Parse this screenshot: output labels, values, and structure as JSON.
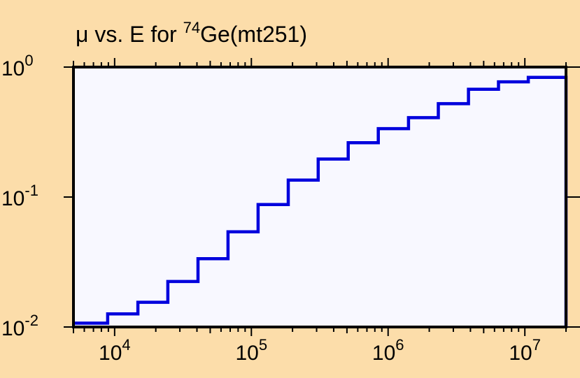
{
  "colors": {
    "background": "#FCDDAA",
    "plot_area": "#F8F8FF",
    "series": "#0000DD",
    "axis": "#000000"
  },
  "chart_data": {
    "type": "line",
    "step": true,
    "title": {
      "prefix": "μ vs. E for ",
      "sup": "74",
      "suffix": "Ge(mt251)"
    },
    "xlabel": "",
    "ylabel": "",
    "xscale": "log",
    "yscale": "log",
    "xlim": [
      5000,
      20000000
    ],
    "ylim": [
      0.01,
      1
    ],
    "grid": false,
    "x_ticks": [
      {
        "base": "10",
        "exp": "4",
        "value": 10000
      },
      {
        "base": "10",
        "exp": "5",
        "value": 100000
      },
      {
        "base": "10",
        "exp": "6",
        "value": 1000000
      },
      {
        "base": "10",
        "exp": "7",
        "value": 10000000
      }
    ],
    "y_ticks": [
      {
        "base": "10",
        "exp": "0",
        "value": 1
      },
      {
        "base": "10",
        "exp": "-1",
        "value": 0.1
      },
      {
        "base": "10",
        "exp": "-2",
        "value": 0.01
      }
    ],
    "series": [
      {
        "edges": [
          5000,
          8900,
          14800,
          24500,
          40700,
          67500,
          112000,
          186000,
          308000,
          511000,
          848000,
          1410000,
          2330000,
          3870000,
          6420000,
          10600000,
          20000000
        ],
        "values": [
          0.0107,
          0.0126,
          0.0155,
          0.0224,
          0.0335,
          0.054,
          0.0875,
          0.135,
          0.196,
          0.262,
          0.336,
          0.408,
          0.523,
          0.675,
          0.77,
          0.834
        ]
      }
    ]
  }
}
